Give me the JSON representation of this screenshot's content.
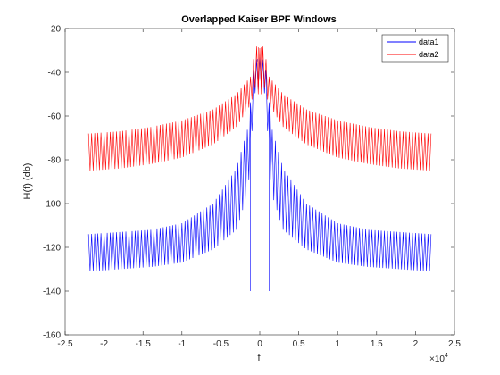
{
  "chart_data": {
    "type": "line",
    "title": "Overlapped Kaiser BPF Windows",
    "xlabel": "f",
    "ylabel": "H(f) (db)",
    "x_exponent_label": "×10",
    "x_exponent_power": "4",
    "xlim": [
      -2.5,
      2.5
    ],
    "ylim": [
      -160,
      -20
    ],
    "x_ticks": [
      -2.5,
      -2,
      -1.5,
      -1,
      -0.5,
      0,
      0.5,
      1,
      1.5,
      2,
      2.5
    ],
    "x_tick_labels": [
      "-2.5",
      "-2",
      "-1.5",
      "-1",
      "-0.5",
      "0",
      "0.5",
      "1",
      "1.5",
      "2",
      "2.5"
    ],
    "y_ticks": [
      -20,
      -40,
      -60,
      -80,
      -100,
      -120,
      -140,
      -160
    ],
    "y_tick_labels": [
      "-20",
      "-40",
      "-60",
      "-80",
      "-100",
      "-120",
      "-140",
      "-160"
    ],
    "grid": false,
    "legend_position": "top-right",
    "series": [
      {
        "name": "data1",
        "color": "#0000ff",
        "upper_envelope": [
          [
            -2.2,
            -114
          ],
          [
            -1.8,
            -113
          ],
          [
            -1.4,
            -112
          ],
          [
            -1.0,
            -109
          ],
          [
            -0.6,
            -100
          ],
          [
            -0.3,
            -84
          ],
          [
            -0.15,
            -65
          ],
          [
            -0.07,
            -35
          ],
          [
            0,
            -33
          ],
          [
            0.07,
            -35
          ],
          [
            0.15,
            -65
          ],
          [
            0.3,
            -84
          ],
          [
            0.6,
            -100
          ],
          [
            1.0,
            -109
          ],
          [
            1.4,
            -112
          ],
          [
            1.8,
            -113
          ],
          [
            2.2,
            -114
          ]
        ],
        "lower_envelope": [
          [
            -2.2,
            -131
          ],
          [
            -1.8,
            -130
          ],
          [
            -1.4,
            -129
          ],
          [
            -1.0,
            -127
          ],
          [
            -0.6,
            -121
          ],
          [
            -0.3,
            -112
          ],
          [
            -0.15,
            -95
          ],
          [
            -0.07,
            -50
          ],
          [
            0,
            -47
          ],
          [
            0.07,
            -50
          ],
          [
            0.15,
            -95
          ],
          [
            0.3,
            -112
          ],
          [
            0.6,
            -121
          ],
          [
            1.0,
            -127
          ],
          [
            1.4,
            -129
          ],
          [
            1.8,
            -130
          ],
          [
            2.2,
            -131
          ]
        ],
        "features": [
          [
            -0.12,
            -140
          ],
          [
            -0.03,
            -35
          ],
          [
            0.03,
            -35
          ],
          [
            0.12,
            -140
          ]
        ]
      },
      {
        "name": "data2",
        "color": "#ff0000",
        "upper_envelope": [
          [
            -2.2,
            -68
          ],
          [
            -1.8,
            -67
          ],
          [
            -1.4,
            -65
          ],
          [
            -1.0,
            -62
          ],
          [
            -0.6,
            -57
          ],
          [
            -0.3,
            -50
          ],
          [
            -0.12,
            -42
          ],
          [
            -0.05,
            -28
          ],
          [
            0,
            -29
          ],
          [
            0.05,
            -28
          ],
          [
            0.12,
            -42
          ],
          [
            0.3,
            -50
          ],
          [
            0.6,
            -57
          ],
          [
            1.0,
            -62
          ],
          [
            1.4,
            -65
          ],
          [
            1.8,
            -67
          ],
          [
            2.2,
            -68
          ]
        ],
        "lower_envelope": [
          [
            -2.2,
            -85
          ],
          [
            -1.8,
            -84
          ],
          [
            -1.4,
            -82
          ],
          [
            -1.0,
            -79
          ],
          [
            -0.6,
            -73
          ],
          [
            -0.3,
            -65
          ],
          [
            -0.12,
            -55
          ],
          [
            -0.05,
            -46
          ],
          [
            0,
            -52
          ],
          [
            0.05,
            -46
          ],
          [
            0.12,
            -55
          ],
          [
            0.3,
            -65
          ],
          [
            0.6,
            -73
          ],
          [
            1.0,
            -79
          ],
          [
            1.4,
            -82
          ],
          [
            1.8,
            -84
          ],
          [
            2.2,
            -85
          ]
        ],
        "features": [
          [
            -0.02,
            -50
          ],
          [
            0.02,
            -50
          ]
        ]
      }
    ]
  }
}
